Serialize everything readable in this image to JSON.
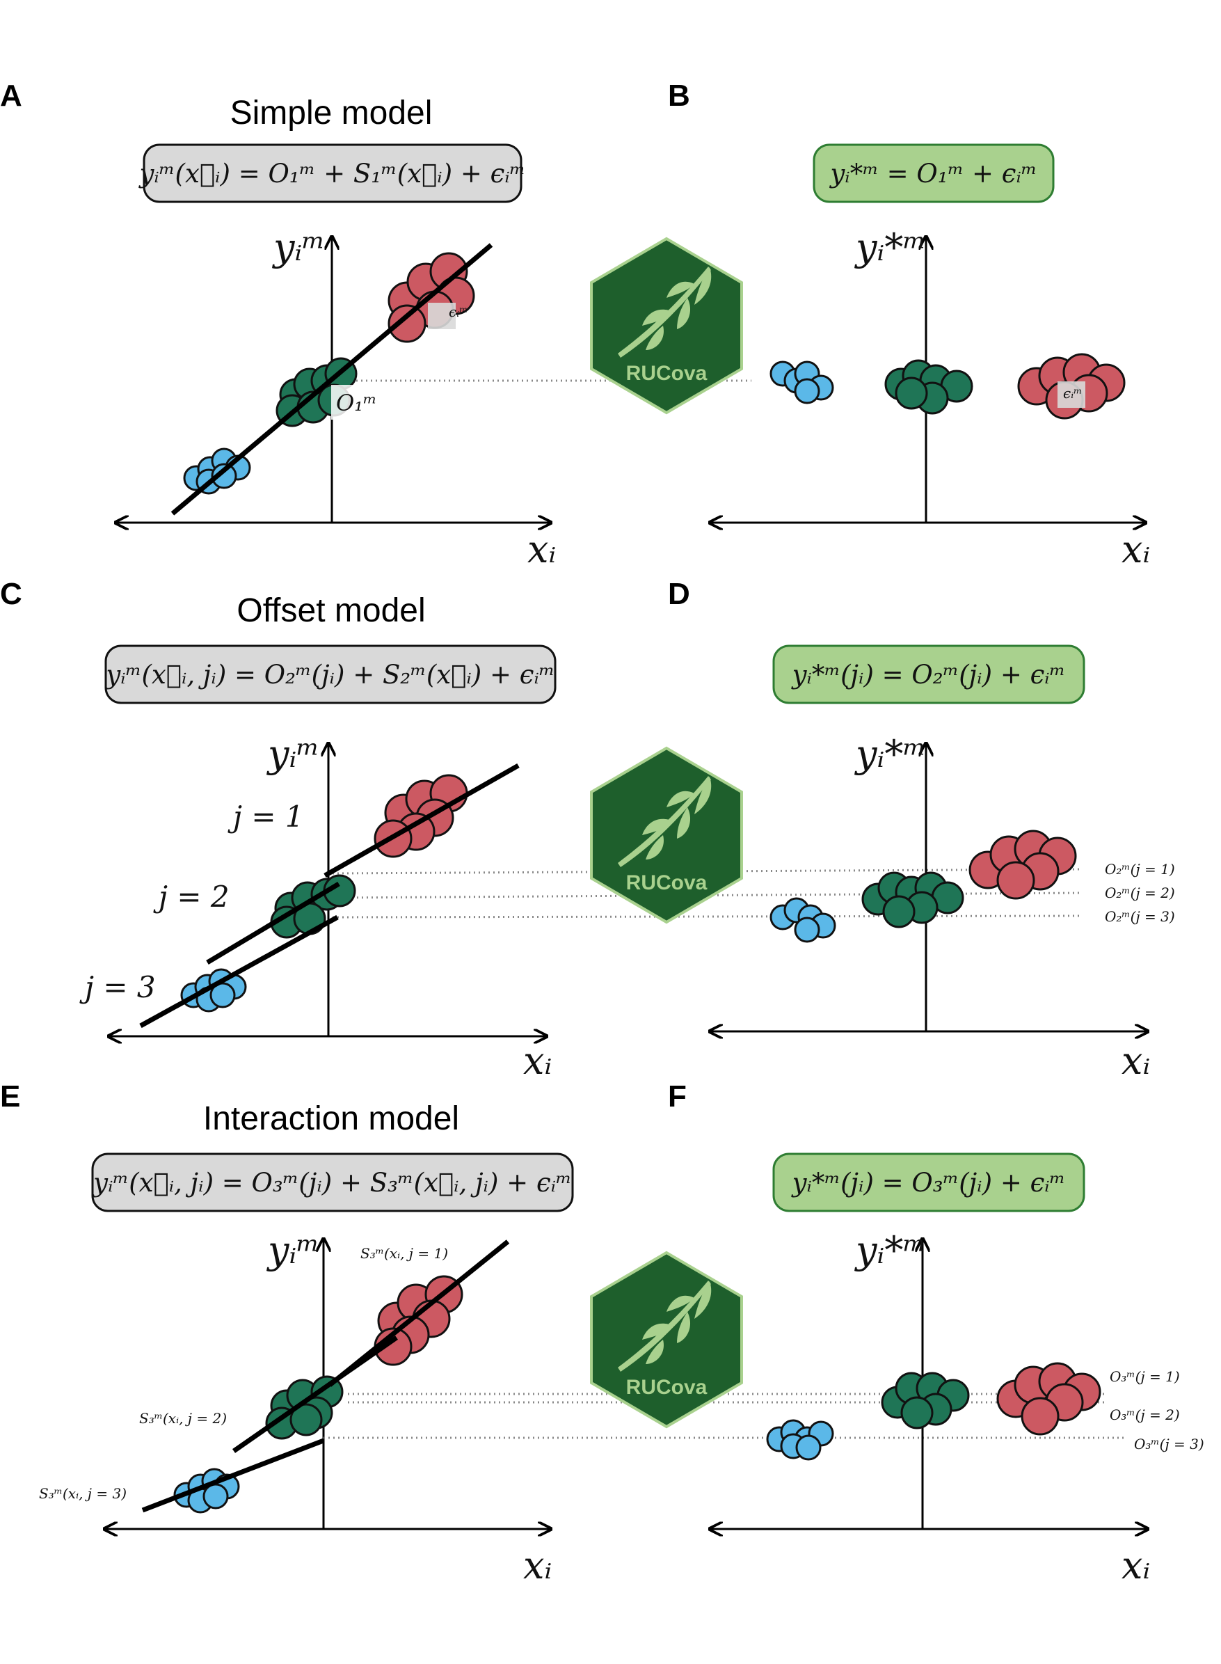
{
  "panels": {
    "A": {
      "letter": "A",
      "title": "Simple model",
      "equation": "yᵢᵐ(x⃗ᵢ) = O₁ᵐ + S₁ᵐ(x⃗ᵢ) + ϵᵢᵐ",
      "y_label": "yᵢᵐ",
      "x_label": "xᵢ",
      "offset_label": "O₁ᵐ",
      "error_label": "ϵᵢᵐ"
    },
    "B": {
      "letter": "B",
      "equation": "yᵢ*ᵐ = O₁ᵐ + ϵᵢᵐ",
      "y_label": "yᵢ*ᵐ",
      "x_label": "xᵢ",
      "error_label": "ϵᵢᵐ"
    },
    "C": {
      "letter": "C",
      "title": "Offset model",
      "equation": "yᵢᵐ(x⃗ᵢ, jᵢ) = O₂ᵐ(jᵢ) + S₂ᵐ(x⃗ᵢ) + ϵᵢᵐ",
      "y_label": "yᵢᵐ",
      "x_label": "xᵢ",
      "j1": "j = 1",
      "j2": "j = 2",
      "j3": "j = 3"
    },
    "D": {
      "letter": "D",
      "equation": "yᵢ*ᵐ(jᵢ) = O₂ᵐ(jᵢ) + ϵᵢᵐ",
      "y_label": "yᵢ*ᵐ",
      "x_label": "xᵢ",
      "o1": "O₂ᵐ(j = 1)",
      "o2": "O₂ᵐ(j = 2)",
      "o3": "O₂ᵐ(j = 3)"
    },
    "E": {
      "letter": "E",
      "title": "Interaction model",
      "equation": "yᵢᵐ(x⃗ᵢ, jᵢ) = O₃ᵐ(jᵢ) + S₃ᵐ(x⃗ᵢ, jᵢ) + ϵᵢᵐ",
      "y_label": "yᵢᵐ",
      "x_label": "xᵢ",
      "s1": "S₃ᵐ(xᵢ, j = 1)",
      "s2": "S₃ᵐ(xᵢ, j = 2)",
      "s3": "S₃ᵐ(xᵢ, j = 3)"
    },
    "F": {
      "letter": "F",
      "equation": "yᵢ*ᵐ(jᵢ) = O₃ᵐ(jᵢ) + ϵᵢᵐ",
      "y_label": "yᵢ*ᵐ",
      "x_label": "xᵢ",
      "o1": "O₃ᵐ(j = 1)",
      "o2": "O₃ᵐ(j = 2)",
      "o3": "O₃ᵐ(j = 3)"
    }
  },
  "logo": {
    "text": "RUCova",
    "name": "rucova-logo"
  },
  "colors": {
    "blue": "#5bb8e8",
    "green": "#1f7556",
    "red": "#cc5962",
    "eq_gray": "#d9d9d9",
    "eq_green": "#a9d18e",
    "eq_green_border": "#2e7d32",
    "logo_dark": "#1e5f2c",
    "logo_light": "#a9d18e"
  }
}
